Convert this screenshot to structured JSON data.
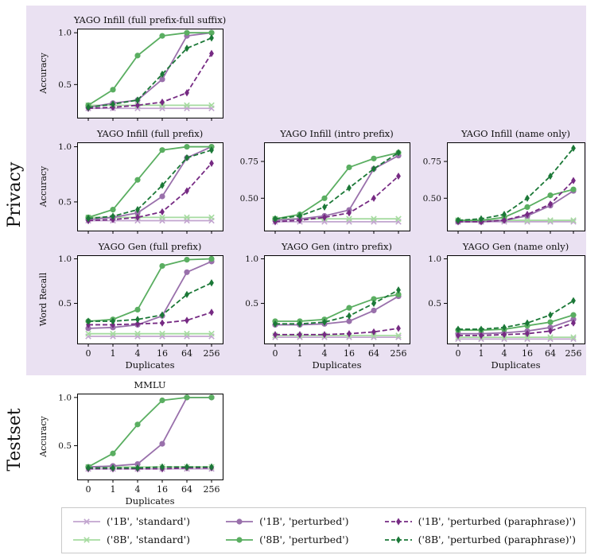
{
  "sections": {
    "privacy": "Privacy",
    "testset": "Testset"
  },
  "colors": {
    "privacy_section_bg": "#EAE1F2",
    "axis": "#000000",
    "text": "#111111",
    "legend_border": "#c9c9c9"
  },
  "chart_data": {
    "type": "line",
    "x_categories": [
      "0",
      "1",
      "4",
      "16",
      "64",
      "256"
    ],
    "xlabel": "Duplicates",
    "legend_position": "bottom",
    "grid": false,
    "series_defs": [
      {
        "id": "s1b_standard",
        "label": "('1B', 'standard')",
        "color": "#c2a5cf",
        "dash": "solid",
        "marker": "x"
      },
      {
        "id": "s8b_standard",
        "label": "('8B', 'standard')",
        "color": "#a6dba0",
        "dash": "solid",
        "marker": "x"
      },
      {
        "id": "s1b_perturbed",
        "label": "('1B', 'perturbed')",
        "color": "#9970ab",
        "dash": "solid",
        "marker": "circle"
      },
      {
        "id": "s8b_perturbed",
        "label": "('8B', 'perturbed')",
        "color": "#5aae61",
        "dash": "solid",
        "marker": "circle"
      },
      {
        "id": "s1b_paraphrase",
        "label": "('1B', 'perturbed (paraphrase)')",
        "color": "#762a83",
        "dash": "dashed",
        "marker": "diamond"
      },
      {
        "id": "s8b_paraphrase",
        "label": "('8B', 'perturbed (paraphrase)')",
        "color": "#1b7837",
        "dash": "dashed",
        "marker": "diamond"
      }
    ],
    "panels": [
      {
        "id": "infill_full_prefix_full_suffix",
        "section": "Privacy",
        "title": "YAGO Infill (full prefix-full suffix)",
        "ylabel": "Accuracy",
        "ylim": [
          0.18,
          1.04
        ],
        "yticks": [
          0.5,
          1.0
        ],
        "ytick_labels": [
          "0.5",
          "1.0"
        ],
        "series": {
          "s1b_standard": [
            0.27,
            0.27,
            0.27,
            0.27,
            0.27,
            0.27
          ],
          "s8b_standard": [
            0.3,
            0.3,
            0.3,
            0.3,
            0.3,
            0.3
          ],
          "s1b_perturbed": [
            0.28,
            0.32,
            0.35,
            0.55,
            0.97,
            1.0
          ],
          "s8b_perturbed": [
            0.3,
            0.45,
            0.78,
            0.97,
            1.0,
            1.0
          ],
          "s1b_paraphrase": [
            0.27,
            0.28,
            0.3,
            0.33,
            0.42,
            0.8
          ],
          "s8b_paraphrase": [
            0.28,
            0.31,
            0.35,
            0.6,
            0.85,
            0.95
          ]
        }
      },
      {
        "id": "infill_full_prefix",
        "section": "Privacy",
        "title": "YAGO Infill (full prefix)",
        "ylabel": "Accuracy",
        "ylim": [
          0.24,
          1.04
        ],
        "yticks": [
          0.5,
          1.0
        ],
        "ytick_labels": [
          "0.5",
          "1.0"
        ],
        "series": {
          "s1b_standard": [
            0.33,
            0.33,
            0.33,
            0.33,
            0.33,
            0.33
          ],
          "s8b_standard": [
            0.36,
            0.36,
            0.36,
            0.36,
            0.36,
            0.36
          ],
          "s1b_perturbed": [
            0.34,
            0.36,
            0.4,
            0.55,
            0.9,
            1.0
          ],
          "s8b_perturbed": [
            0.36,
            0.43,
            0.7,
            0.97,
            1.0,
            1.0
          ],
          "s1b_paraphrase": [
            0.33,
            0.34,
            0.36,
            0.41,
            0.6,
            0.85
          ],
          "s8b_paraphrase": [
            0.35,
            0.37,
            0.43,
            0.65,
            0.9,
            0.97
          ]
        }
      },
      {
        "id": "infill_intro_prefix",
        "section": "Privacy",
        "title": "YAGO Infill (intro prefix)",
        "ylabel": null,
        "ylim": [
          0.28,
          0.88
        ],
        "yticks": [
          0.5,
          0.75
        ],
        "ytick_labels": [
          "0.50",
          "0.75"
        ],
        "series": {
          "s1b_standard": [
            0.34,
            0.34,
            0.34,
            0.34,
            0.34,
            0.34
          ],
          "s8b_standard": [
            0.36,
            0.36,
            0.36,
            0.36,
            0.36,
            0.36
          ],
          "s1b_perturbed": [
            0.35,
            0.36,
            0.38,
            0.42,
            0.7,
            0.79
          ],
          "s8b_perturbed": [
            0.36,
            0.39,
            0.5,
            0.71,
            0.77,
            0.81
          ],
          "s1b_paraphrase": [
            0.34,
            0.35,
            0.37,
            0.4,
            0.5,
            0.65
          ],
          "s8b_paraphrase": [
            0.36,
            0.38,
            0.44,
            0.57,
            0.7,
            0.81
          ]
        }
      },
      {
        "id": "infill_name_only",
        "section": "Privacy",
        "title": "YAGO Infill (name only)",
        "ylabel": null,
        "ylim": [
          0.28,
          0.88
        ],
        "yticks": [
          0.5,
          0.75
        ],
        "ytick_labels": [
          "0.50",
          "0.75"
        ],
        "series": {
          "s1b_standard": [
            0.34,
            0.34,
            0.34,
            0.34,
            0.34,
            0.34
          ],
          "s8b_standard": [
            0.35,
            0.35,
            0.35,
            0.35,
            0.35,
            0.35
          ],
          "s1b_perturbed": [
            0.34,
            0.34,
            0.35,
            0.38,
            0.45,
            0.55
          ],
          "s8b_perturbed": [
            0.35,
            0.35,
            0.37,
            0.44,
            0.52,
            0.56
          ],
          "s1b_paraphrase": [
            0.34,
            0.34,
            0.35,
            0.39,
            0.46,
            0.62
          ],
          "s8b_paraphrase": [
            0.35,
            0.36,
            0.39,
            0.5,
            0.65,
            0.84
          ]
        }
      },
      {
        "id": "gen_full_prefix",
        "section": "Privacy",
        "title": "YAGO Gen (full prefix)",
        "ylabel": "Word Recall",
        "ylim": [
          0.05,
          1.04
        ],
        "yticks": [
          0.5,
          1.0
        ],
        "ytick_labels": [
          "0.5",
          "1.0"
        ],
        "xlabel": "Duplicates",
        "series": {
          "s1b_standard": [
            0.13,
            0.13,
            0.13,
            0.13,
            0.13,
            0.13
          ],
          "s8b_standard": [
            0.16,
            0.16,
            0.16,
            0.16,
            0.16,
            0.16
          ],
          "s1b_perturbed": [
            0.22,
            0.23,
            0.26,
            0.36,
            0.85,
            0.97
          ],
          "s8b_perturbed": [
            0.3,
            0.32,
            0.43,
            0.92,
            0.99,
            1.0
          ],
          "s1b_paraphrase": [
            0.26,
            0.26,
            0.27,
            0.28,
            0.31,
            0.4
          ],
          "s8b_paraphrase": [
            0.3,
            0.3,
            0.32,
            0.37,
            0.6,
            0.73
          ]
        }
      },
      {
        "id": "gen_intro_prefix",
        "section": "Privacy",
        "title": "YAGO Gen (intro prefix)",
        "ylabel": null,
        "ylim": [
          0.05,
          1.04
        ],
        "yticks": [
          0.5,
          1.0
        ],
        "ytick_labels": [
          "0.5",
          "1.0"
        ],
        "xlabel": "Duplicates",
        "series": {
          "s1b_standard": [
            0.12,
            0.12,
            0.12,
            0.12,
            0.12,
            0.12
          ],
          "s8b_standard": [
            0.14,
            0.14,
            0.14,
            0.14,
            0.14,
            0.14
          ],
          "s1b_perturbed": [
            0.26,
            0.26,
            0.27,
            0.3,
            0.42,
            0.58
          ],
          "s8b_perturbed": [
            0.3,
            0.3,
            0.32,
            0.45,
            0.55,
            0.6
          ],
          "s1b_paraphrase": [
            0.15,
            0.15,
            0.15,
            0.16,
            0.18,
            0.22
          ],
          "s8b_paraphrase": [
            0.27,
            0.27,
            0.29,
            0.36,
            0.5,
            0.65
          ]
        }
      },
      {
        "id": "gen_name_only",
        "section": "Privacy",
        "title": "YAGO Gen (name only)",
        "ylabel": null,
        "ylim": [
          0.05,
          1.04
        ],
        "yticks": [
          0.5,
          1.0
        ],
        "ytick_labels": [
          "0.5",
          "1.0"
        ],
        "xlabel": "Duplicates",
        "series": {
          "s1b_standard": [
            0.1,
            0.1,
            0.1,
            0.1,
            0.1,
            0.1
          ],
          "s8b_standard": [
            0.12,
            0.12,
            0.12,
            0.12,
            0.12,
            0.12
          ],
          "s1b_perturbed": [
            0.16,
            0.16,
            0.17,
            0.19,
            0.23,
            0.32
          ],
          "s8b_perturbed": [
            0.2,
            0.2,
            0.21,
            0.25,
            0.29,
            0.37
          ],
          "s1b_paraphrase": [
            0.14,
            0.14,
            0.15,
            0.16,
            0.19,
            0.28
          ],
          "s8b_paraphrase": [
            0.21,
            0.21,
            0.23,
            0.28,
            0.37,
            0.53
          ]
        }
      },
      {
        "id": "mmlu",
        "section": "Testset",
        "title": "MMLU",
        "ylabel": "Accuracy",
        "ylim": [
          0.15,
          1.04
        ],
        "yticks": [
          0.5,
          1.0
        ],
        "ytick_labels": [
          "0.5",
          "1.0"
        ],
        "xlabel": "Duplicates",
        "series": {
          "s1b_standard": [
            0.26,
            0.26,
            0.26,
            0.26,
            0.26,
            0.26
          ],
          "s8b_standard": [
            0.28,
            0.28,
            0.28,
            0.28,
            0.28,
            0.28
          ],
          "s1b_perturbed": [
            0.28,
            0.29,
            0.31,
            0.52,
            1.0,
            1.0
          ],
          "s8b_perturbed": [
            0.28,
            0.42,
            0.72,
            0.97,
            1.0,
            1.0
          ],
          "s1b_paraphrase": [
            0.26,
            0.26,
            0.26,
            0.26,
            0.27,
            0.27
          ],
          "s8b_paraphrase": [
            0.27,
            0.27,
            0.27,
            0.28,
            0.28,
            0.28
          ]
        }
      }
    ]
  }
}
